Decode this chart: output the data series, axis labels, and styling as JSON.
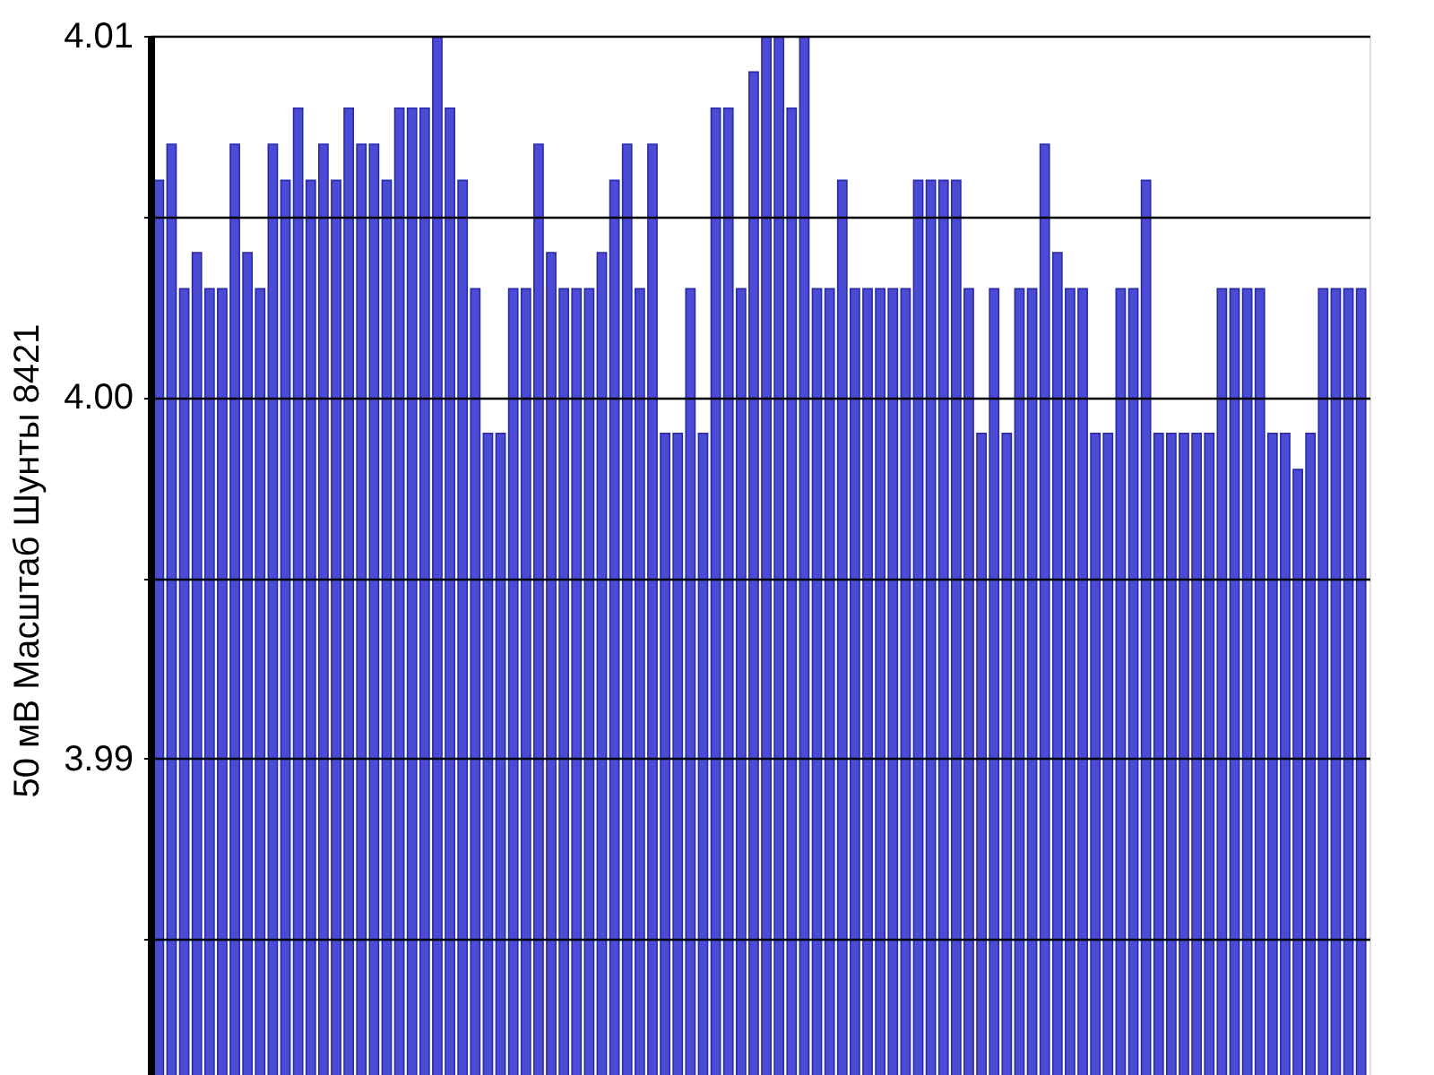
{
  "chart_data": {
    "type": "bar",
    "ylabel": "50 мВ Масштаб   Шунты 8421",
    "categories": [
      null,
      null,
      null,
      null,
      null,
      null,
      null,
      null,
      null,
      null,
      null,
      null,
      null,
      null,
      null,
      null,
      null,
      null,
      null,
      null,
      null,
      null,
      null,
      null,
      null,
      null,
      null,
      null,
      null,
      null,
      null,
      null,
      null,
      null,
      null,
      null,
      null,
      null,
      null,
      null,
      null,
      null,
      null,
      null,
      null,
      null,
      null,
      null,
      null,
      null,
      null,
      null,
      null,
      null,
      null,
      null,
      null,
      null,
      null,
      null,
      null,
      null,
      null,
      null,
      null,
      null,
      null,
      null,
      null,
      null,
      null,
      null,
      null,
      null,
      null,
      null,
      null,
      null,
      null,
      null,
      null,
      null,
      null,
      null,
      null,
      null,
      null,
      null,
      null,
      null,
      null,
      null,
      null,
      null,
      null,
      null
    ],
    "values": [
      4.006,
      4.007,
      4.003,
      4.004,
      4.003,
      4.003,
      4.007,
      4.004,
      4.003,
      4.007,
      4.006,
      4.008,
      4.006,
      4.007,
      4.006,
      4.008,
      4.007,
      4.007,
      4.006,
      4.008,
      4.008,
      4.008,
      4.01,
      4.008,
      4.006,
      4.003,
      3.999,
      3.999,
      4.003,
      4.003,
      4.007,
      4.004,
      4.003,
      4.003,
      4.003,
      4.004,
      4.006,
      4.007,
      4.003,
      4.007,
      3.999,
      3.999,
      4.003,
      3.999,
      4.008,
      4.008,
      4.003,
      4.009,
      4.01,
      4.01,
      4.008,
      4.01,
      4.003,
      4.003,
      4.006,
      4.003,
      4.003,
      4.003,
      4.003,
      4.003,
      4.006,
      4.006,
      4.006,
      4.006,
      4.003,
      3.999,
      4.003,
      3.999,
      4.003,
      4.003,
      4.007,
      4.004,
      4.003,
      4.003,
      3.999,
      3.999,
      4.003,
      4.003,
      4.006,
      3.999,
      3.999,
      3.999,
      3.999,
      3.999,
      4.003,
      4.003,
      4.003,
      4.003,
      3.999,
      3.999,
      3.998,
      3.999,
      4.003,
      4.003,
      4.003,
      4.003
    ],
    "color": "#4b4bd6",
    "ylim": [
      3.981,
      4.01
    ],
    "yticks": [
      {
        "value": 3.985,
        "label": null
      },
      3.99,
      {
        "value": 3.995,
        "label": null
      },
      {
        "value": 4.0,
        "label": "4.00"
      },
      {
        "value": 4.005,
        "label": null
      },
      4.01
    ],
    "grid": "y",
    "tick_labels": "y"
  }
}
